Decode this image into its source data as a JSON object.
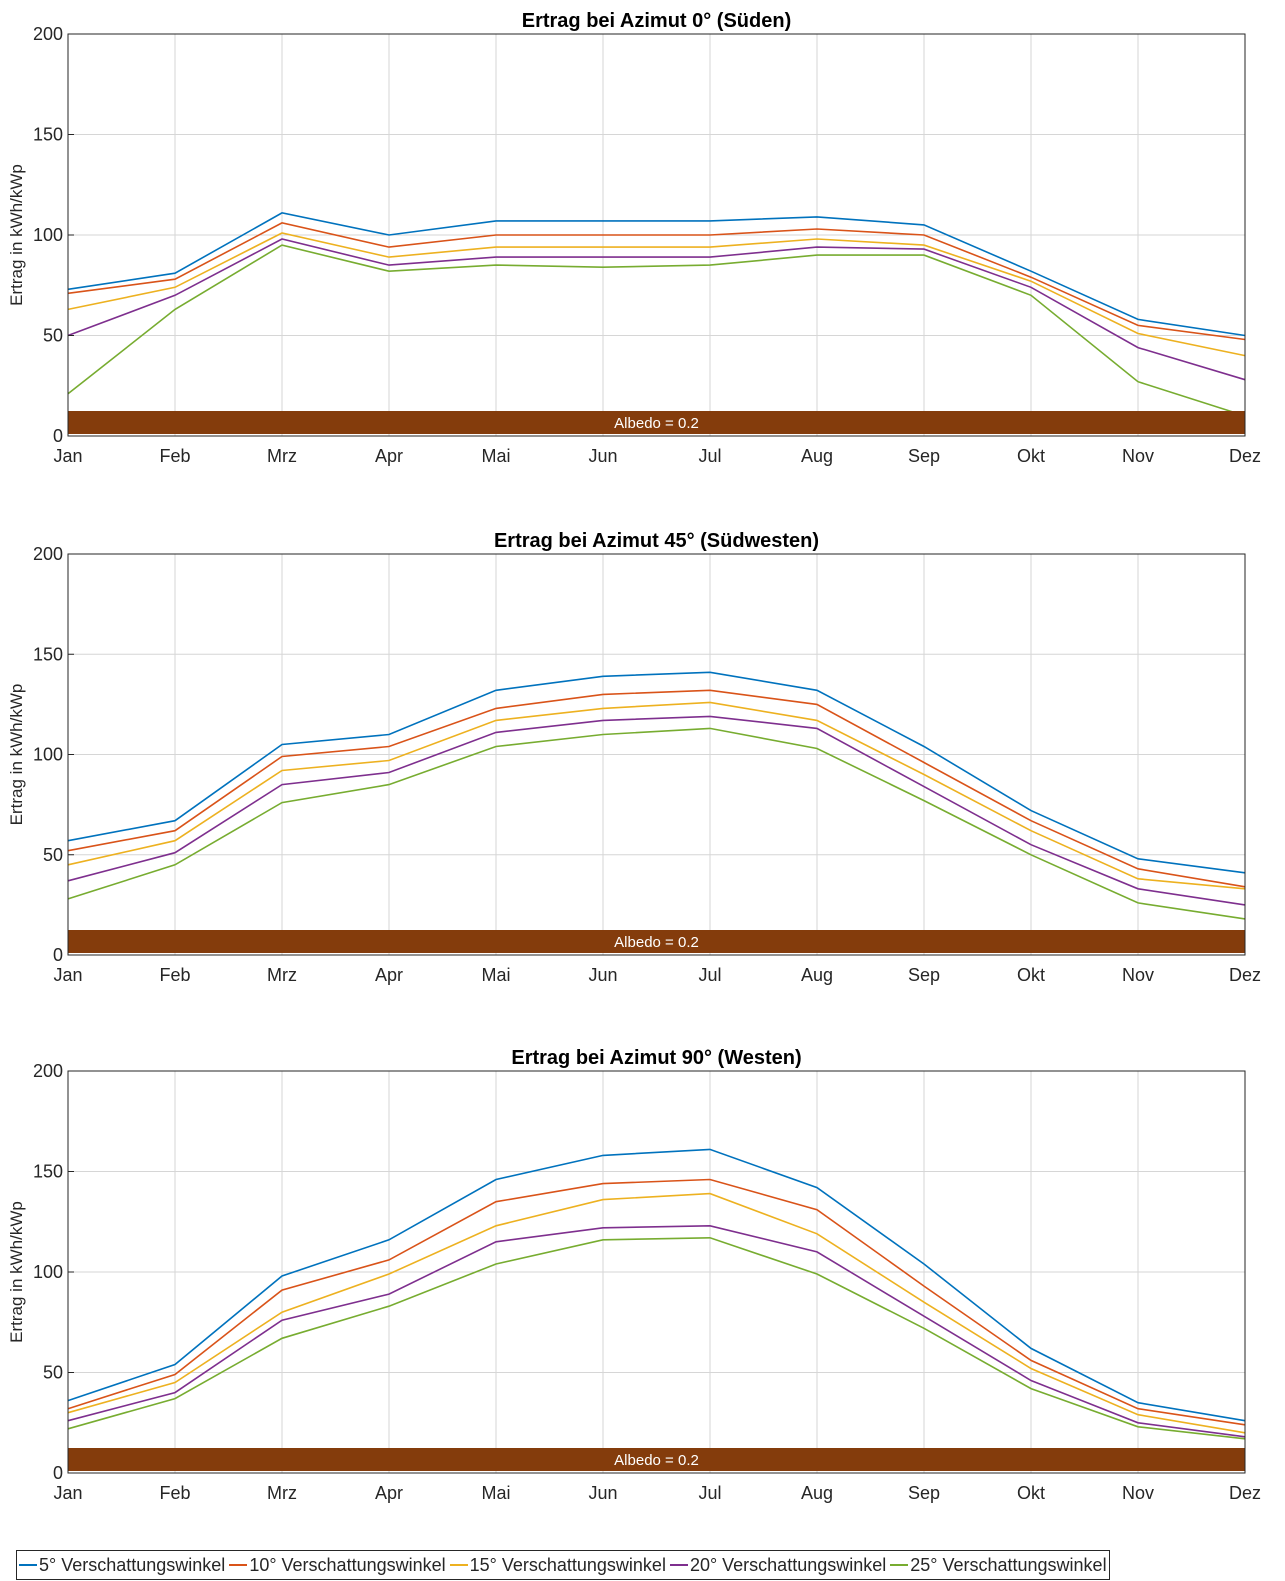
{
  "chart_data": [
    {
      "type": "line",
      "title": "Ertrag bei Azimut 0° (Süden)",
      "ylabel": "Ertrag in kWh/kWp",
      "categories": [
        "Jan",
        "Feb",
        "Mrz",
        "Apr",
        "Mai",
        "Jun",
        "Jul",
        "Aug",
        "Sep",
        "Okt",
        "Nov",
        "Dez"
      ],
      "ylim": [
        0,
        200
      ],
      "yticks": [
        0,
        50,
        100,
        150,
        200
      ],
      "grid": true,
      "annotation": "Albedo = 0.2",
      "series": [
        {
          "name": "5° Verschattungswinkel",
          "color": "#0072BD",
          "values": [
            73,
            81,
            111,
            100,
            107,
            107,
            107,
            109,
            105,
            82,
            58,
            50
          ]
        },
        {
          "name": "10° Verschattungswinkel",
          "color": "#D95319",
          "values": [
            71,
            78,
            106,
            94,
            100,
            100,
            100,
            103,
            100,
            79,
            55,
            48
          ]
        },
        {
          "name": "15° Verschattungswinkel",
          "color": "#EDB120",
          "values": [
            63,
            74,
            101,
            89,
            94,
            94,
            94,
            98,
            95,
            77,
            51,
            40
          ]
        },
        {
          "name": "20° Verschattungswinkel",
          "color": "#7E2F8E",
          "values": [
            50,
            70,
            98,
            85,
            89,
            89,
            89,
            94,
            93,
            74,
            44,
            28
          ]
        },
        {
          "name": "25° Verschattungswinkel",
          "color": "#77AC30",
          "values": [
            21,
            63,
            95,
            82,
            85,
            84,
            85,
            90,
            90,
            70,
            27,
            10
          ]
        }
      ]
    },
    {
      "type": "line",
      "title": "Ertrag bei Azimut 45° (Südwesten)",
      "ylabel": "Ertrag in kWh/kWp",
      "categories": [
        "Jan",
        "Feb",
        "Mrz",
        "Apr",
        "Mai",
        "Jun",
        "Jul",
        "Aug",
        "Sep",
        "Okt",
        "Nov",
        "Dez"
      ],
      "ylim": [
        0,
        200
      ],
      "yticks": [
        0,
        50,
        100,
        150,
        200
      ],
      "grid": true,
      "annotation": "Albedo = 0.2",
      "series": [
        {
          "name": "5° Verschattungswinkel",
          "color": "#0072BD",
          "values": [
            57,
            67,
            105,
            110,
            132,
            139,
            141,
            132,
            104,
            72,
            48,
            41
          ]
        },
        {
          "name": "10° Verschattungswinkel",
          "color": "#D95319",
          "values": [
            52,
            62,
            99,
            104,
            123,
            130,
            132,
            125,
            96,
            67,
            43,
            34
          ]
        },
        {
          "name": "15° Verschattungswinkel",
          "color": "#EDB120",
          "values": [
            45,
            57,
            92,
            97,
            117,
            123,
            126,
            117,
            90,
            62,
            38,
            33
          ]
        },
        {
          "name": "20° Verschattungswinkel",
          "color": "#7E2F8E",
          "values": [
            37,
            51,
            85,
            91,
            111,
            117,
            119,
            113,
            84,
            55,
            33,
            25
          ]
        },
        {
          "name": "25° Verschattungswinkel",
          "color": "#77AC30",
          "values": [
            28,
            45,
            76,
            85,
            104,
            110,
            113,
            103,
            77,
            50,
            26,
            18
          ]
        }
      ]
    },
    {
      "type": "line",
      "title": "Ertrag bei Azimut 90° (Westen)",
      "ylabel": "Ertrag in kWh/kWp",
      "categories": [
        "Jan",
        "Feb",
        "Mrz",
        "Apr",
        "Mai",
        "Jun",
        "Jul",
        "Aug",
        "Sep",
        "Okt",
        "Nov",
        "Dez"
      ],
      "ylim": [
        0,
        200
      ],
      "yticks": [
        0,
        50,
        100,
        150,
        200
      ],
      "grid": true,
      "annotation": "Albedo = 0.2",
      "series": [
        {
          "name": "5° Verschattungswinkel",
          "color": "#0072BD",
          "values": [
            36,
            54,
            98,
            116,
            146,
            158,
            161,
            142,
            104,
            62,
            35,
            26
          ]
        },
        {
          "name": "10° Verschattungswinkel",
          "color": "#D95319",
          "values": [
            32,
            49,
            91,
            106,
            135,
            144,
            146,
            131,
            93,
            56,
            32,
            24
          ]
        },
        {
          "name": "15° Verschattungswinkel",
          "color": "#EDB120",
          "values": [
            30,
            45,
            80,
            99,
            123,
            136,
            139,
            119,
            85,
            52,
            29,
            20
          ]
        },
        {
          "name": "20° Verschattungswinkel",
          "color": "#7E2F8E",
          "values": [
            26,
            40,
            76,
            89,
            115,
            122,
            123,
            110,
            78,
            46,
            25,
            18
          ]
        },
        {
          "name": "25° Verschattungswinkel",
          "color": "#77AC30",
          "values": [
            22,
            37,
            67,
            83,
            104,
            116,
            117,
            99,
            72,
            42,
            23,
            17
          ]
        }
      ]
    }
  ],
  "colors": {
    "albedo_bar": "#843C0C"
  },
  "legend": {
    "placement": "bottom",
    "items": [
      {
        "label": "5° Verschattungswinkel",
        "color": "#0072BD"
      },
      {
        "label": "10° Verschattungswinkel",
        "color": "#D95319"
      },
      {
        "label": "15° Verschattungswinkel",
        "color": "#EDB120"
      },
      {
        "label": "20° Verschattungswinkel",
        "color": "#7E2F8E"
      },
      {
        "label": "25° Verschattungswinkel",
        "color": "#77AC30"
      }
    ]
  }
}
